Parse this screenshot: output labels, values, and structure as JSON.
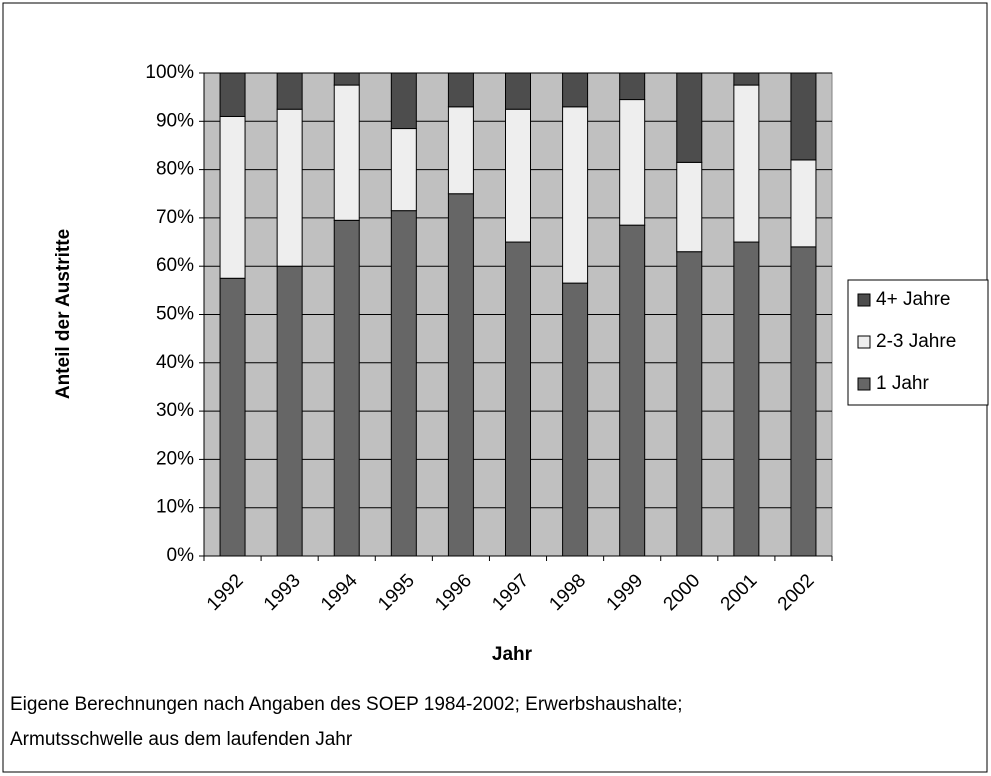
{
  "chart_data": {
    "type": "stacked_bar",
    "xlabel": "Jahr",
    "ylabel": "Anteil der Austritte",
    "categories": [
      "1992",
      "1993",
      "1994",
      "1995",
      "1996",
      "1997",
      "1998",
      "1999",
      "2000",
      "2001",
      "2002"
    ],
    "series": [
      {
        "name": "1 Jahr",
        "color": "#666666",
        "values": [
          57.5,
          60,
          69.5,
          71.5,
          75,
          65,
          56.5,
          68.5,
          63,
          65,
          64
        ]
      },
      {
        "name": "2-3 Jahre",
        "color": "#eeeeee",
        "values": [
          33.5,
          32.5,
          28,
          17,
          18,
          27.5,
          36.5,
          26,
          18.5,
          32.5,
          18
        ]
      },
      {
        "name": "4+ Jahre",
        "color": "#4d4d4d",
        "values": [
          9,
          7.5,
          2.5,
          11.5,
          7,
          7.5,
          7,
          5.5,
          18.5,
          2.5,
          18
        ]
      }
    ],
    "ylim": [
      0,
      100
    ],
    "yticks": [
      {
        "value": 0,
        "label": "0%"
      },
      {
        "value": 10,
        "label": "10%"
      },
      {
        "value": 20,
        "label": "20%"
      },
      {
        "value": 30,
        "label": "30%"
      },
      {
        "value": 40,
        "label": "40%"
      },
      {
        "value": 50,
        "label": "50%"
      },
      {
        "value": 60,
        "label": "60%"
      },
      {
        "value": 70,
        "label": "70%"
      },
      {
        "value": 80,
        "label": "80%"
      },
      {
        "value": 90,
        "label": "90%"
      },
      {
        "value": 100,
        "label": "100%"
      }
    ],
    "grid": true,
    "plot_background": "#c0c0c0",
    "legend": "right",
    "notes": [
      "Eigene Berechnungen nach Angaben des SOEP 1984-2002; Erwerbshaushalte;",
      "Armutsschwelle aus dem laufenden Jahr"
    ]
  }
}
